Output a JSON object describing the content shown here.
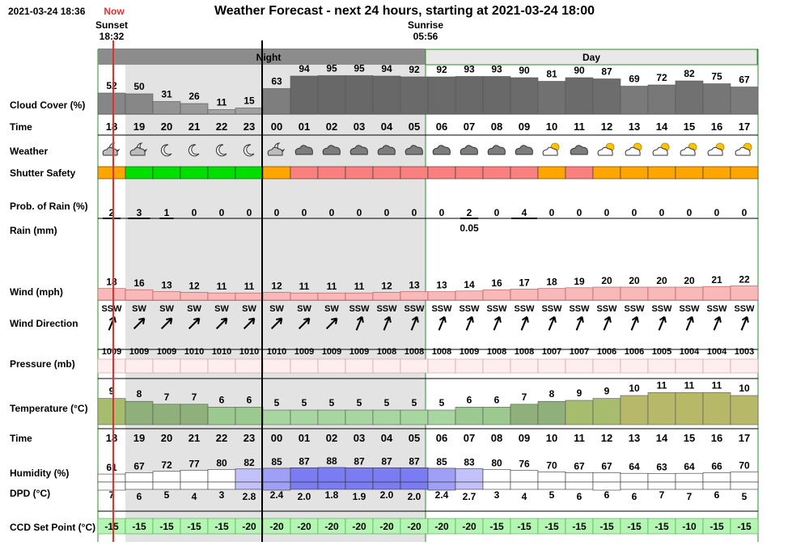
{
  "header": {
    "timestamp": "2021-03-24 18:36",
    "now_label": "Now",
    "title": "Weather Forecast - next 24 hours, starting at 2021-03-24 18:00",
    "sunset_label": "Sunset",
    "sunset_time": "18:32",
    "sunrise_label": "Sunrise",
    "sunrise_time": "05:56"
  },
  "periods": {
    "night": "Night",
    "day": "Day"
  },
  "row_labels": {
    "cloud_cover": "Cloud Cover (%)",
    "time": "Time",
    "weather": "Weather",
    "shutter_safety": "Shutter Safety",
    "rain_prob": "Prob. of Rain (%)",
    "rain_mm": "Rain (mm)",
    "wind": "Wind (mph)",
    "wind_direction": "Wind Direction",
    "pressure": "Pressure (mb)",
    "temperature": "Temperature (°C)",
    "time_bottom": "Time",
    "humidity": "Humidity (%)",
    "dpd": "DPD (°C)",
    "ccd": "CCD Set Point (°C)"
  },
  "colors": {
    "night_bg": "#e3e3e3",
    "night_header": "#8c8c8c",
    "day_header": "#e8e8e8",
    "divider_green": "#2e8b2e",
    "now_line": "#e03030",
    "shutter_green": "#00e000",
    "shutter_orange": "#ffa500",
    "shutter_red": "#fa8080",
    "wind_fill": "#f9b9b9",
    "pressure_fill": "#ffeeee",
    "ccd_fill": "#b4f5b4"
  },
  "hours": [
    "18",
    "19",
    "20",
    "21",
    "22",
    "23",
    "00",
    "01",
    "02",
    "03",
    "04",
    "05",
    "06",
    "07",
    "08",
    "09",
    "10",
    "11",
    "12",
    "13",
    "14",
    "15",
    "16",
    "17"
  ],
  "cloud_cover": [
    52,
    50,
    31,
    26,
    11,
    15,
    63,
    94,
    95,
    95,
    94,
    92,
    92,
    93,
    93,
    90,
    81,
    90,
    87,
    69,
    72,
    82,
    75,
    67
  ],
  "weather_icons": [
    "partly-cloudy-night-icon",
    "partly-cloudy-night-icon",
    "moon-icon",
    "moon-icon",
    "moon-icon",
    "moon-icon",
    "partly-cloudy-night-icon",
    "cloud-icon",
    "cloud-icon",
    "cloud-icon",
    "cloud-icon",
    "cloud-icon",
    "cloud-icon",
    "cloud-icon",
    "cloud-icon",
    "cloud-icon",
    "partly-cloudy-day-icon",
    "cloud-icon",
    "partly-cloudy-day-icon",
    "partly-cloudy-day-icon",
    "partly-cloudy-day-icon",
    "partly-cloudy-day-icon",
    "partly-cloudy-day-icon",
    "partly-cloudy-day-icon"
  ],
  "shutter_safety": [
    "orange",
    "green",
    "green",
    "green",
    "green",
    "green",
    "orange",
    "red",
    "red",
    "red",
    "red",
    "red",
    "red",
    "red",
    "red",
    "red",
    "orange",
    "red",
    "orange",
    "orange",
    "orange",
    "orange",
    "orange",
    "orange"
  ],
  "rain_prob": [
    2,
    3,
    1,
    0,
    0,
    0,
    0,
    0,
    0,
    0,
    0,
    0,
    0,
    2,
    0,
    4,
    0,
    0,
    0,
    0,
    0,
    0,
    0,
    0
  ],
  "rain_mm_labels": [
    "",
    "",
    "",
    "",
    "",
    "",
    "",
    "",
    "",
    "",
    "",
    "",
    "",
    "0.05",
    "",
    "",
    "",
    "",
    "",
    "",
    "",
    "",
    "",
    ""
  ],
  "wind": [
    18,
    16,
    13,
    12,
    11,
    11,
    12,
    11,
    11,
    11,
    12,
    13,
    13,
    14,
    16,
    17,
    18,
    19,
    20,
    20,
    20,
    20,
    21,
    22
  ],
  "wind_direction": [
    "SSW",
    "SW",
    "SW",
    "SW",
    "SW",
    "SW",
    "SW",
    "SW",
    "SW",
    "SSW",
    "SSW",
    "SSW",
    "SSW",
    "SSW",
    "SSW",
    "SSW",
    "SSW",
    "SSW",
    "SSW",
    "SSW",
    "SSW",
    "SSW",
    "SSW",
    "SSW"
  ],
  "pressure": [
    1009,
    1009,
    1009,
    1010,
    1010,
    1010,
    1010,
    1009,
    1009,
    1009,
    1008,
    1008,
    1008,
    1009,
    1008,
    1008,
    1007,
    1007,
    1006,
    1006,
    1005,
    1004,
    1004,
    1003
  ],
  "temperature": [
    9,
    8,
    7,
    7,
    6,
    6,
    5,
    5,
    5,
    5,
    5,
    5,
    5,
    6,
    6,
    7,
    8,
    9,
    9,
    10,
    11,
    11,
    11,
    10
  ],
  "humidity": [
    61,
    67,
    72,
    77,
    80,
    82,
    85,
    87,
    88,
    87,
    87,
    87,
    85,
    83,
    80,
    76,
    70,
    67,
    67,
    64,
    63,
    64,
    66,
    70
  ],
  "dpd": [
    "7",
    "6",
    "5",
    "4",
    "3",
    "2.8",
    "2.4",
    "2.0",
    "1.8",
    "1.9",
    "2.0",
    "2.0",
    "2.4",
    "2.7",
    "3",
    "4",
    "5",
    "6",
    "6",
    "6",
    "7",
    "7",
    "6",
    "5"
  ],
  "ccd_set_point": [
    -15,
    -15,
    -15,
    -15,
    -15,
    -20,
    -20,
    -20,
    -20,
    -20,
    -20,
    -20,
    -20,
    -20,
    -15,
    -15,
    -15,
    -15,
    -15,
    -15,
    -15,
    -10,
    -15,
    -15
  ]
}
